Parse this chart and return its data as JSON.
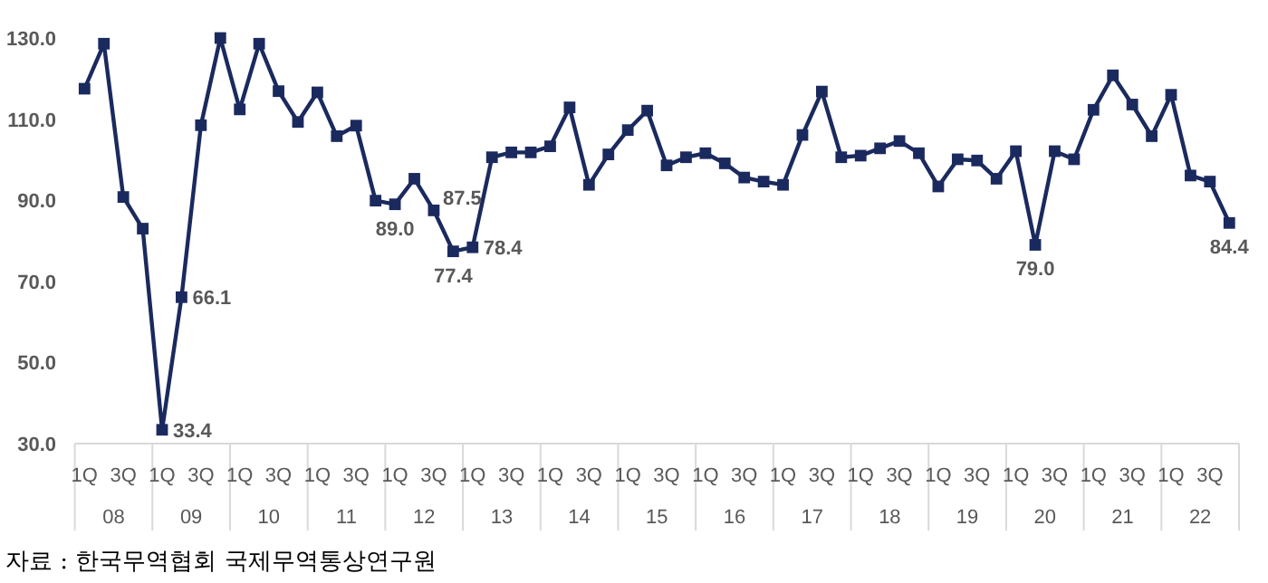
{
  "chart_data": {
    "type": "line",
    "categories": [
      "1Q",
      null,
      "3Q",
      null,
      "1Q",
      null,
      "3Q",
      null,
      "1Q",
      null,
      "3Q",
      null,
      "1Q",
      null,
      "3Q",
      null,
      "1Q",
      null,
      "3Q",
      null,
      "1Q",
      null,
      "3Q",
      null,
      "1Q",
      null,
      "3Q",
      null,
      "1Q",
      null,
      "3Q",
      null,
      "1Q",
      null,
      "3Q",
      null,
      "1Q",
      null,
      "3Q",
      null,
      "1Q",
      null,
      "3Q",
      null,
      "1Q",
      null,
      "3Q",
      null,
      "1Q",
      null,
      "3Q",
      null,
      "1Q",
      null,
      "3Q",
      null,
      "1Q",
      null,
      "3Q",
      null
    ],
    "series": [
      {
        "color": "#1b2a5e",
        "values": [
          117.5,
          128.6,
          90.8,
          83.0,
          33.4,
          66.1,
          108.5,
          130.0,
          112.4,
          128.6,
          116.9,
          109.3,
          116.6,
          105.8,
          108.4,
          89.9,
          89.0,
          95.3,
          87.5,
          77.4,
          78.4,
          100.6,
          101.8,
          101.8,
          103.3,
          112.9,
          93.8,
          101.3,
          107.3,
          112.1,
          98.6,
          100.6,
          101.6,
          99.1,
          95.6,
          94.6,
          93.8,
          106.1,
          116.8,
          100.6,
          101.0,
          102.8,
          104.6,
          101.6,
          93.4,
          100.1,
          99.8,
          95.3,
          102.1,
          79.0,
          102.1,
          100.1,
          112.3,
          120.8,
          113.6,
          105.8,
          116.0,
          96.1,
          94.6,
          84.4
        ],
        "value_labels": [
          null,
          null,
          null,
          null,
          "33.4",
          "66.1",
          null,
          null,
          null,
          null,
          null,
          null,
          null,
          null,
          null,
          null,
          "89.0",
          null,
          "87.5",
          "77.4",
          "78.4",
          null,
          null,
          null,
          null,
          null,
          null,
          null,
          null,
          null,
          null,
          null,
          null,
          null,
          null,
          null,
          null,
          null,
          null,
          null,
          null,
          null,
          null,
          null,
          null,
          null,
          null,
          null,
          null,
          "79.0",
          null,
          null,
          null,
          null,
          null,
          null,
          null,
          null,
          null,
          "84.4"
        ]
      }
    ],
    "ylim": [
      30,
      130
    ],
    "yticks": [
      {
        "value": 30,
        "label": "30.0"
      },
      {
        "value": 50,
        "label": "50.0"
      },
      {
        "value": 70,
        "label": "70.0"
      },
      {
        "value": 90,
        "label": "90.0"
      },
      {
        "value": 110,
        "label": "110.0"
      },
      {
        "value": 130,
        "label": "130.0"
      }
    ],
    "marker": "square",
    "line_style": "solid",
    "grid": false,
    "annotations": [
      "08",
      "09",
      "10",
      "11",
      "12",
      "13",
      "14",
      "15",
      "16",
      "17",
      "18",
      "19",
      "20",
      "21",
      "22",
      "자료 : 한국무역협회 국제무역통상연구원"
    ]
  }
}
